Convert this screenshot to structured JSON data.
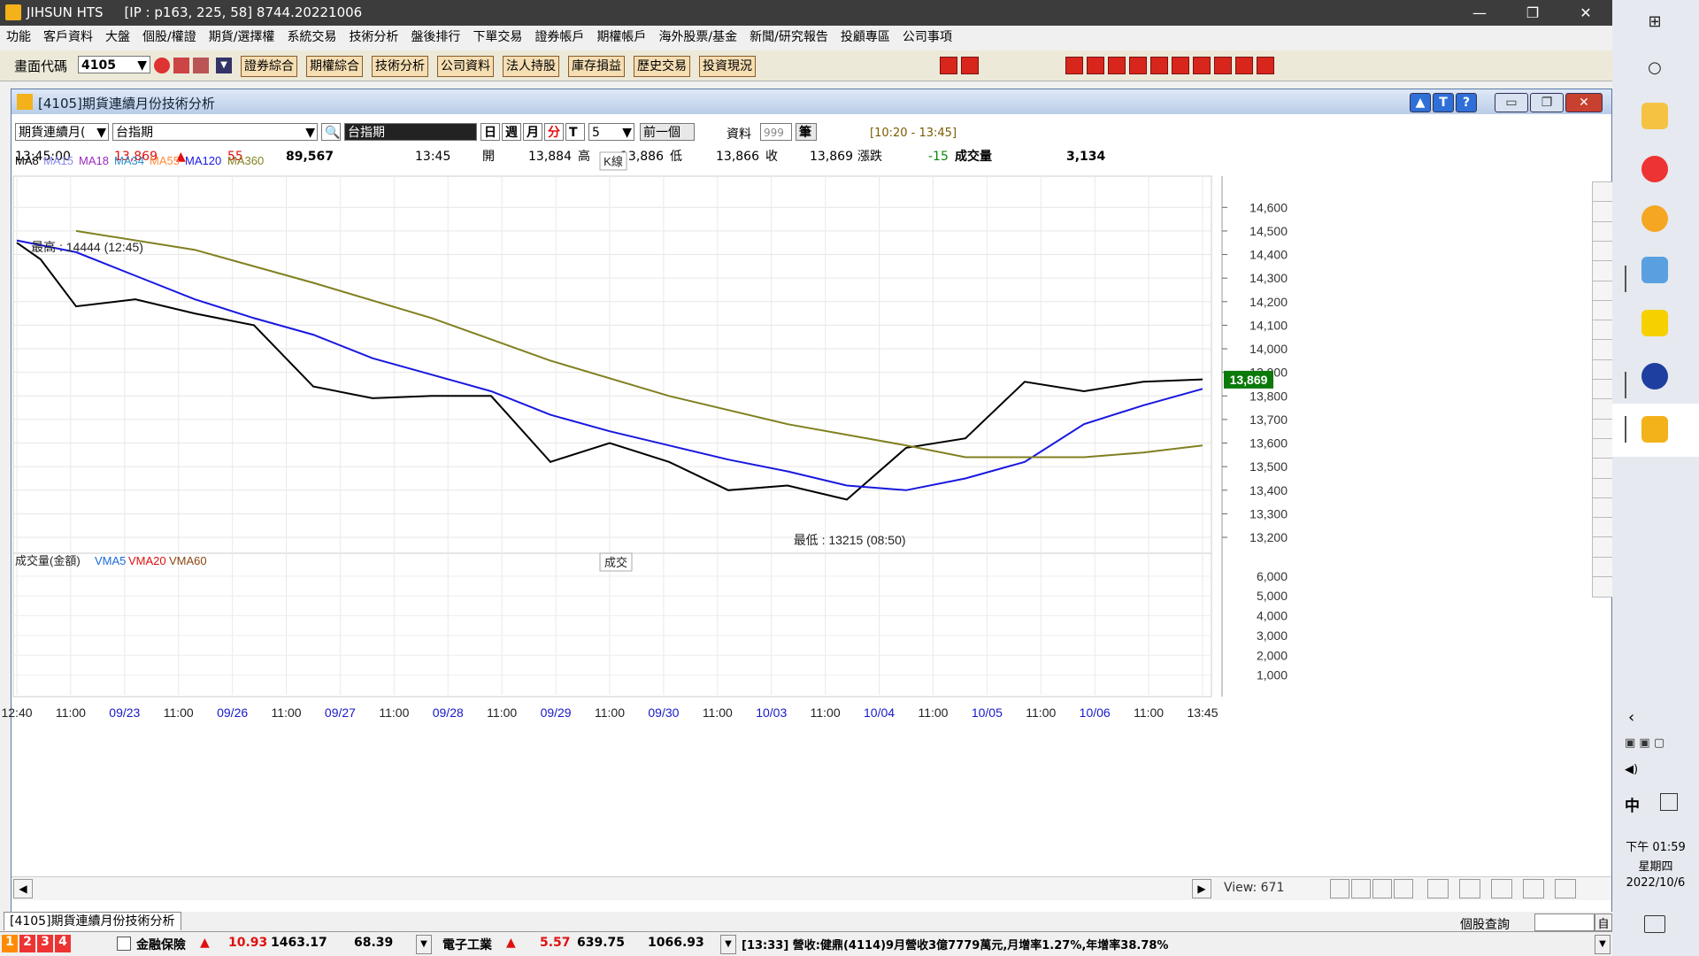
{
  "titlebar": {
    "app": "JIHSUN HTS",
    "info": "[IP : p163, 225, 58] 8744.20221006"
  },
  "menu": [
    "功能",
    "客戶資料",
    "大盤",
    "個股/權證",
    "期貨/選擇權",
    "系統交易",
    "技術分析",
    "盤後排行",
    "下單交易",
    "證券帳戶",
    "期權帳戶",
    "海外股票/基金",
    "新聞/研究報告",
    "投顧專區",
    "公司事項"
  ],
  "toolbar": {
    "code_label": "畫面代碼",
    "code_value": "4105",
    "buttons": [
      "證券綜合",
      "期權綜合",
      "技術分析",
      "公司資料",
      "法人持股",
      "庫存損益",
      "歷史交易",
      "投資現況"
    ]
  },
  "window": {
    "title": "[4105]期貨連續月份技術分析",
    "tab_label": "[4105]期貨連續月份技術分析"
  },
  "controls": {
    "product": "期貨連續月(",
    "symbol": "台指期",
    "symbol_display": "台指期",
    "periods": [
      "日",
      "週",
      "月",
      "分",
      "T"
    ],
    "interval": "5",
    "prev_label": "前一個",
    "data_label": "資料",
    "data_count": "999",
    "data_unit": "筆",
    "time_range": "[10:20 - 13:45]"
  },
  "quote": {
    "time": "13:45:00",
    "price": "13,869",
    "change": "55",
    "volume_total": "89,567",
    "qtime": "13:45",
    "open_label": "開",
    "open": "13,884",
    "high_label": "高",
    "high": "13,886",
    "low_label": "低",
    "low": "13,866",
    "close_label": "收",
    "close": "13,869",
    "chg_label": "漲跌",
    "chg": "-15",
    "vol_label": "成交量",
    "vol": "3,134"
  },
  "chart_legend": {
    "ma": [
      {
        "name": "MA8",
        "color": "#000000"
      },
      {
        "name": "MA15",
        "color": "#8888ee"
      },
      {
        "name": "MA18",
        "color": "#9a2ac0"
      },
      {
        "name": "MA34",
        "color": "#2a8fd0"
      },
      {
        "name": "MA55",
        "color": "#ff8c3a"
      },
      {
        "name": "MA120",
        "color": "#1818e0"
      },
      {
        "name": "MA360",
        "color": "#808020"
      }
    ],
    "k_label": "K線",
    "vol_title": "成交量(金額)",
    "vma": [
      {
        "name": "VMA5",
        "color": "#1a6ad8"
      },
      {
        "name": "VMA20",
        "color": "#e01010"
      },
      {
        "name": "VMA60",
        "color": "#8b4513"
      }
    ],
    "vol_box": "成交"
  },
  "chart_data": {
    "type": "line",
    "y_ticks": [
      "14,600",
      "14,500",
      "14,400",
      "14,300",
      "14,200",
      "14,100",
      "14,000",
      "13,900",
      "13,800",
      "13,700",
      "13,600",
      "13,500",
      "13,400",
      "13,300",
      "13,200"
    ],
    "ylim": [
      13140,
      14680
    ],
    "x_ticks": [
      "12:40",
      "11:00",
      "09/23",
      "11:00",
      "09/26",
      "11:00",
      "09/27",
      "11:00",
      "09/28",
      "11:00",
      "09/29",
      "11:00",
      "09/30",
      "11:00",
      "10/03",
      "11:00",
      "10/04",
      "11:00",
      "10/05",
      "11:00",
      "10/06",
      "11:00",
      "13:45"
    ],
    "date_ticks": [
      "09/23",
      "09/26",
      "09/27",
      "09/28",
      "09/29",
      "09/30",
      "10/03",
      "10/04",
      "10/05",
      "10/06"
    ],
    "last_price": "13,869",
    "max_annotation": "最高 : 14444 (12:45)",
    "min_annotation": "最低 : 13215 (08:50)",
    "vol_ticks": [
      "6,000",
      "5,000",
      "4,000",
      "3,000",
      "2,000",
      "1,000"
    ],
    "vol_ylim": [
      0,
      6800
    ],
    "series": [
      {
        "name": "MA8",
        "x": [
          0,
          0.02,
          0.05,
          0.1,
          0.15,
          0.2,
          0.25,
          0.3,
          0.35,
          0.4,
          0.45,
          0.5,
          0.55,
          0.6,
          0.65,
          0.7,
          0.75,
          0.8,
          0.85,
          0.9,
          0.95,
          1.0
        ],
        "values": [
          14450,
          14380,
          14180,
          14210,
          14150,
          14100,
          13840,
          13790,
          13800,
          13800,
          13520,
          13600,
          13520,
          13400,
          13420,
          13360,
          13580,
          13620,
          13860,
          13820,
          13860,
          13870
        ]
      },
      {
        "name": "MA120",
        "x": [
          0,
          0.05,
          0.1,
          0.15,
          0.2,
          0.25,
          0.3,
          0.35,
          0.4,
          0.45,
          0.5,
          0.55,
          0.6,
          0.65,
          0.7,
          0.75,
          0.8,
          0.85,
          0.9,
          0.95,
          1.0
        ],
        "values": [
          14460,
          14410,
          14310,
          14210,
          14130,
          14060,
          13960,
          13890,
          13820,
          13720,
          13650,
          13590,
          13530,
          13480,
          13420,
          13400,
          13450,
          13520,
          13680,
          13760,
          13830
        ]
      },
      {
        "name": "MA360",
        "x": [
          0.05,
          0.15,
          0.25,
          0.35,
          0.45,
          0.55,
          0.65,
          0.75,
          0.8,
          0.85,
          0.9,
          0.95,
          1.0
        ],
        "values": [
          14500,
          14420,
          14280,
          14130,
          13950,
          13800,
          13680,
          13590,
          13540,
          13540,
          13540,
          13560,
          13590
        ]
      }
    ]
  },
  "hscroll": {
    "view_label": "View:",
    "view_value": "671"
  },
  "statusbar": {
    "tabs": [
      "1",
      "2",
      "3",
      "4"
    ],
    "sector1": {
      "name": "金融保險",
      "chg": "10.93",
      "idx": "1463.17",
      "vol": "68.39"
    },
    "sector2": {
      "name": "電子工業",
      "chg": "5.57",
      "idx": "639.75",
      "vol": "1066.93"
    },
    "news": "[13:33] 營收:健鼎(4114)9月營收3億7779萬元,月增率1.27%,年增率38.78%",
    "right_label": "個股查詢",
    "right_btn": "自"
  },
  "taskbar": {
    "time": "下午 01:59",
    "weekday": "星期四",
    "date": "2022/10/6",
    "ime": "中"
  }
}
